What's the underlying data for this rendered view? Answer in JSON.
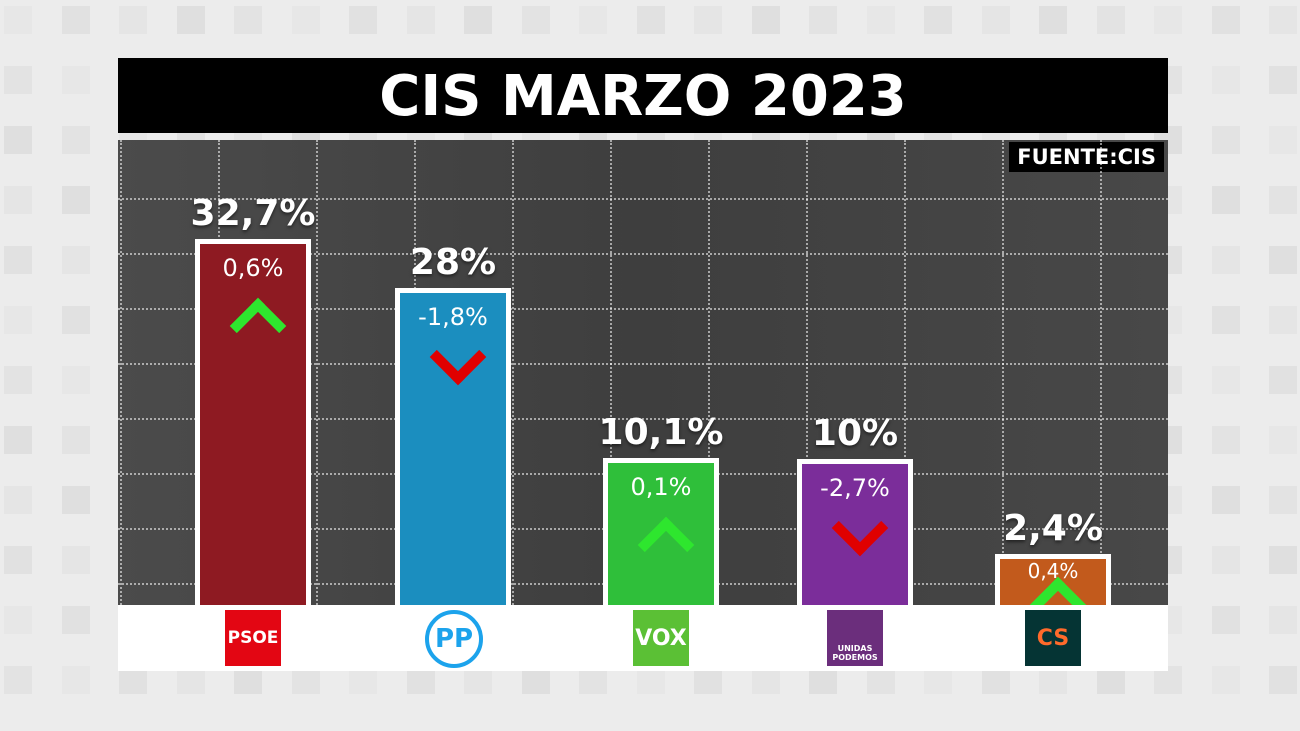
{
  "title": "CIS MARZO 2023",
  "source": "FUENTE:CIS",
  "chart_data": {
    "type": "bar",
    "title": "CIS MARZO 2023",
    "categories": [
      "PSOE",
      "PP",
      "VOX",
      "UNIDAS PODEMOS",
      "CS"
    ],
    "values": [
      32.7,
      28,
      10.1,
      10,
      2.4
    ],
    "value_labels": [
      "32,7%",
      "28%",
      "10,1%",
      "10%",
      "2,4%"
    ],
    "changes": [
      0.6,
      -1.8,
      0.1,
      -2.7,
      0.4
    ],
    "change_labels": [
      "0,6%",
      "-1,8%",
      "0,1%",
      "-2,7%",
      "0,4%"
    ],
    "colors": [
      "#8e1a22",
      "#1b8ebf",
      "#2fbf3a",
      "#7b2d9a",
      "#c25a1c"
    ],
    "up_color": "#2ee62e",
    "down_color": "#e00000",
    "grid": true,
    "logos": [
      {
        "text": "PSOE",
        "bg": "#e30613",
        "fg": "#ffffff"
      },
      {
        "text": "PP",
        "bg": "#ffffff",
        "fg": "#1ca3ec"
      },
      {
        "text": "VOX",
        "bg": "#5bc035",
        "fg": "#ffffff"
      },
      {
        "text": "UNIDAS PODEMOS",
        "bg": "#6b2e7c",
        "fg": "#ffffff"
      },
      {
        "text": "CS",
        "bg": "#053434",
        "fg": "#ff6a2b"
      }
    ]
  }
}
